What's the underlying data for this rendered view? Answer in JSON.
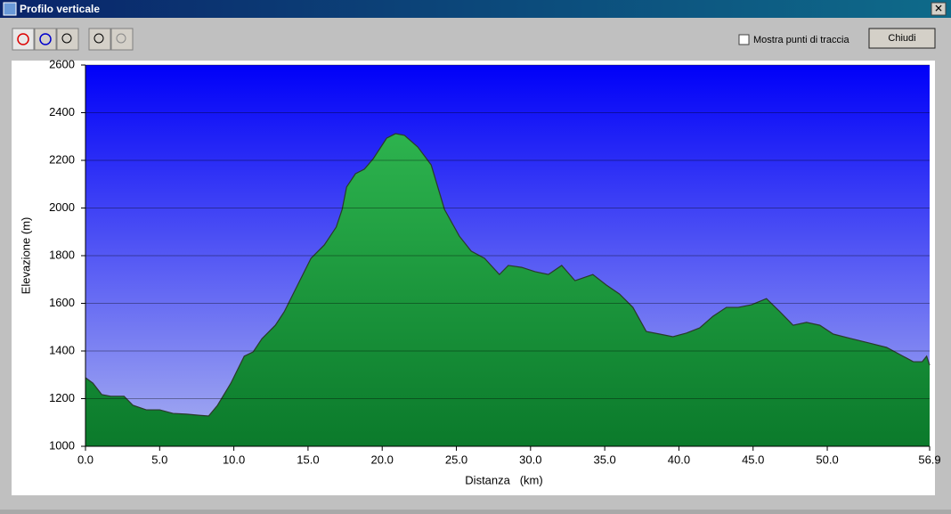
{
  "window": {
    "title": "Profilo verticale",
    "checkbox_label": "Mostra punti di traccia",
    "button_label": "Chiudi"
  },
  "chart_data": {
    "type": "area",
    "x_label": "Distanza   (km)",
    "y_label": "Elevazione (m)",
    "x": [
      0,
      0.5,
      1.1,
      1.7,
      2.6,
      3.2,
      4.1,
      5.0,
      5.9,
      6.8,
      7.7,
      8.3,
      8.9,
      9.8,
      10.7,
      11.3,
      11.9,
      12.8,
      13.4,
      14.3,
      15.2,
      16.1,
      16.9,
      17.3,
      17.6,
      18.2,
      18.8,
      19.4,
      20.3,
      20.9,
      21.5,
      22.4,
      23.3,
      24.2,
      25.2,
      26.0,
      26.9,
      27.9,
      28.5,
      29.4,
      30.3,
      31.2,
      32.1,
      33.0,
      34.2,
      35.1,
      36.0,
      36.9,
      37.8,
      38.7,
      39.6,
      40.5,
      41.4,
      42.3,
      43.2,
      44.0,
      44.9,
      45.9,
      46.8,
      47.7,
      48.6,
      49.5,
      50.4,
      51.6,
      52.8,
      54.0,
      54.9,
      55.8,
      56.4,
      56.7,
      56.9
    ],
    "values": [
      1288,
      1265,
      1217,
      1210,
      1210,
      1172,
      1153,
      1153,
      1138,
      1135,
      1130,
      1127,
      1172,
      1265,
      1378,
      1396,
      1452,
      1508,
      1565,
      1677,
      1789,
      1845,
      1920,
      1994,
      2088,
      2144,
      2163,
      2207,
      2293,
      2312,
      2305,
      2256,
      2181,
      1994,
      1882,
      1819,
      1789,
      1721,
      1759,
      1751,
      1733,
      1721,
      1759,
      1695,
      1721,
      1677,
      1639,
      1583,
      1482,
      1471,
      1460,
      1475,
      1497,
      1546,
      1583,
      1583,
      1594,
      1620,
      1565,
      1508,
      1520,
      1508,
      1471,
      1452,
      1434,
      1415,
      1385,
      1355,
      1355,
      1378,
      1340
    ],
    "color": "#22a443",
    "xlim": [
      0,
      56.9
    ],
    "xticks": [
      {
        "value": 0,
        "label": "0.0"
      },
      {
        "value": 5,
        "label": "5.0"
      },
      {
        "value": 10,
        "label": "10.0"
      },
      {
        "value": 15,
        "label": "15.0"
      },
      {
        "value": 20,
        "label": "20.0"
      },
      {
        "value": 25,
        "label": "25.0"
      },
      {
        "value": 30,
        "label": "30.0"
      },
      {
        "value": 35,
        "label": "35.0"
      },
      {
        "value": 40,
        "label": "40.0"
      },
      {
        "value": 45,
        "label": "45.0"
      },
      {
        "value": 50,
        "label": "50.0"
      },
      56.9
    ],
    "ylim": [
      1000,
      2600
    ],
    "yticks": [
      1000,
      1200,
      1400,
      1600,
      1800,
      2000,
      2200,
      2400,
      2600
    ],
    "grid": true
  }
}
